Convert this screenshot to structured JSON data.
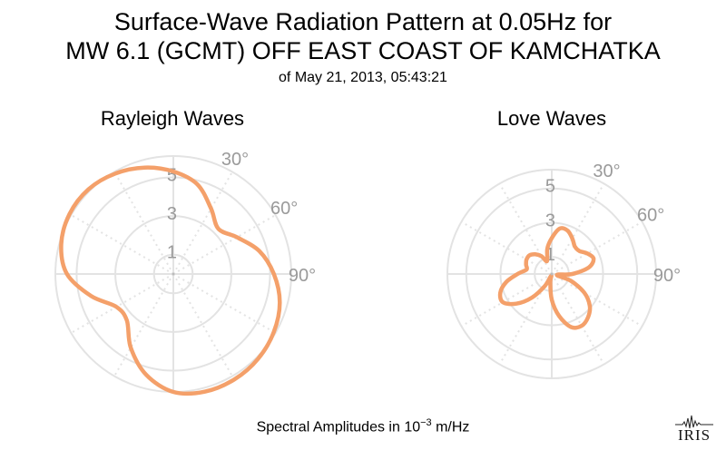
{
  "title_line1": "Surface-Wave Radiation Pattern at 0.05Hz for",
  "title_line2": "MW 6.1 (GCMT) OFF EAST COAST OF KAMCHATKA",
  "title_line3": "of May 21, 2013, 05:43:21",
  "footer": {
    "prefix": "Spectral Amplitudes in ",
    "base": "10",
    "exponent": "−3",
    "unit": " m/Hz"
  },
  "logo_text": "IRIS",
  "colors": {
    "curve": "#f4a06a",
    "grid": "#e3e3e3",
    "tick_label": "#9a9a9a"
  },
  "chart_data": [
    {
      "type": "polar-line",
      "title": "Rayleigh Waves",
      "r_ticks": [
        "1",
        "3",
        "5"
      ],
      "r_tick_values": [
        1,
        3,
        5
      ],
      "angle_ticks": [
        "30°",
        "60°",
        "90°"
      ],
      "angle_tick_values": [
        30,
        60,
        90
      ],
      "rmax": 6.1,
      "grid": true,
      "series": [
        {
          "theta": [
            0,
            15,
            30,
            45,
            60,
            75,
            90,
            105,
            120,
            135,
            150,
            165,
            180,
            195,
            210,
            225,
            240,
            255,
            270,
            285,
            300,
            315,
            330,
            345
          ],
          "r": [
            5.3,
            4.8,
            3.9,
            3.3,
            3.8,
            4.6,
            5.2,
            5.7,
            6.0,
            6.2,
            6.3,
            6.3,
            6.1,
            5.4,
            4.4,
            3.4,
            3.4,
            4.4,
            5.5,
            6.0,
            6.2,
            6.2,
            6.0,
            5.7
          ]
        }
      ]
    },
    {
      "type": "polar-line",
      "title": "Love Waves",
      "r_ticks": [
        "1",
        "3",
        "5"
      ],
      "r_tick_values": [
        1,
        3,
        5
      ],
      "angle_ticks": [
        "30°",
        "60°",
        "90°"
      ],
      "angle_tick_values": [
        30,
        60,
        90
      ],
      "rmax": 6.1,
      "grid": true,
      "series": [
        {
          "theta": [
            0,
            10,
            20,
            30,
            40,
            50,
            60,
            70,
            80,
            90,
            100,
            110,
            120,
            130,
            140,
            150,
            160,
            170,
            180,
            190,
            200,
            210,
            220,
            230,
            240,
            250,
            260,
            270,
            280,
            290,
            300,
            310,
            320,
            330,
            340,
            350
          ],
          "r": [
            2.1,
            2.7,
            2.7,
            2.4,
            2.1,
            2.1,
            2.4,
            2.6,
            2.2,
            1.2,
            0.3,
            1.2,
            2.2,
            2.9,
            3.3,
            3.5,
            3.3,
            2.5,
            1.5,
            0.5,
            0.1,
            0.8,
            1.8,
            2.7,
            3.3,
            3.2,
            2.7,
            2.0,
            1.5,
            1.6,
            1.7,
            1.7,
            1.5,
            1.2,
            0.8,
            1.5
          ]
        }
      ]
    }
  ]
}
